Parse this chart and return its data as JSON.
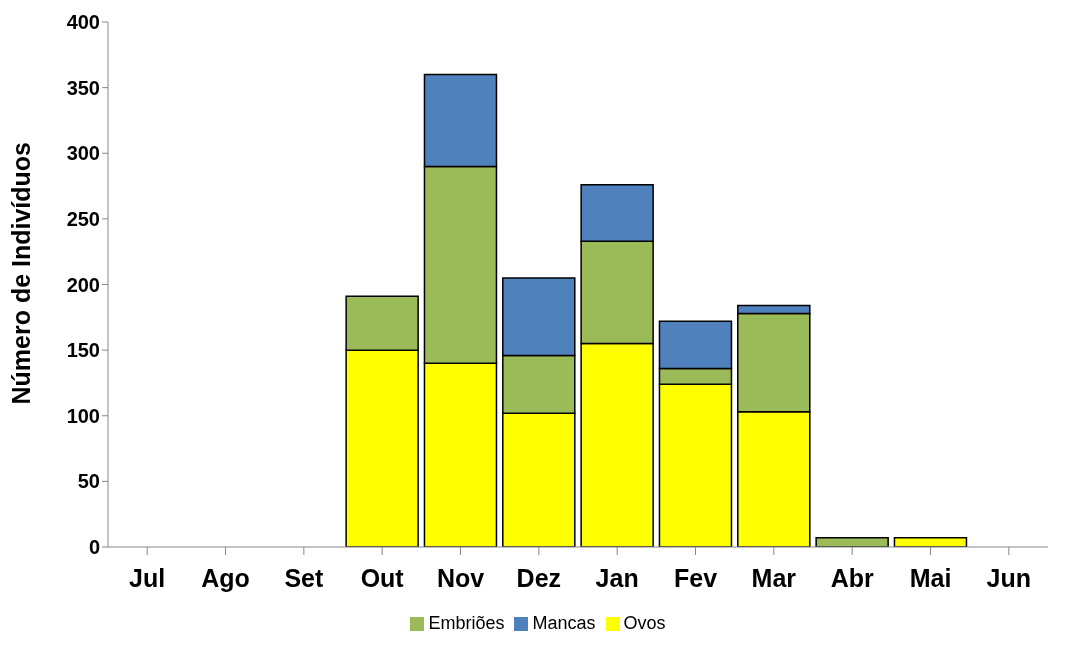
{
  "chart_data": {
    "type": "bar",
    "stacked": true,
    "ylabel": "Número de Indivíduos",
    "categories": [
      "Jul",
      "Ago",
      "Set",
      "Out",
      "Nov",
      "Dez",
      "Jan",
      "Fev",
      "Mar",
      "Abr",
      "Mai",
      "Jun"
    ],
    "series": [
      {
        "name": "Ovos",
        "color": "#ffff00",
        "values": [
          null,
          null,
          null,
          150,
          140,
          102,
          155,
          124,
          103,
          0,
          7,
          null
        ]
      },
      {
        "name": "Embriões",
        "color": "#9bbb59",
        "values": [
          null,
          null,
          null,
          41,
          150,
          44,
          78,
          12,
          75,
          7,
          0,
          null
        ]
      },
      {
        "name": "Mancas",
        "color": "#4f81bd",
        "values": [
          null,
          null,
          null,
          0,
          70,
          59,
          43,
          36,
          6,
          0,
          0,
          null
        ]
      }
    ],
    "ylim": [
      0,
      400
    ],
    "yticks": [
      0,
      50,
      100,
      150,
      200,
      250,
      300,
      350,
      400
    ],
    "grid": false,
    "legend": "bottom"
  }
}
